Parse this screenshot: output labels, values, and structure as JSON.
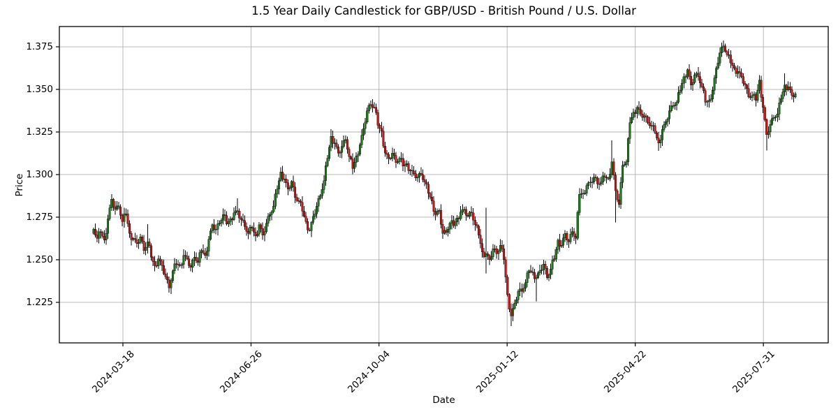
{
  "title": "1.5 Year Daily Candlestick for GBP/USD - British Pound / U.S. Dollar",
  "axes": {
    "xlabel": "Date",
    "ylabel": "Price"
  },
  "chart_data": {
    "type": "candlestick",
    "instrument": "GBP/USD - British Pound / U.S. Dollar",
    "period": "1.5 Year Daily",
    "grid": true,
    "legend": "none",
    "ylim": [
      1.2012,
      1.3869
    ],
    "y_ticks": [
      1.225,
      1.25,
      1.275,
      1.3,
      1.325,
      1.35,
      1.375
    ],
    "x_tick_labels": [
      "2024-03-18",
      "2024-06-26",
      "2024-10-04",
      "2025-01-12",
      "2025-04-22",
      "2025-07-31"
    ],
    "x_tick_day_index": [
      16.3,
      87.5,
      158.6,
      229.8,
      301.0,
      372.2
    ],
    "n_candles": 391,
    "anchor_step_trading_days": 2,
    "min_low": 1.211,
    "max_high": 1.3787,
    "first_close": 1.268,
    "last_close": 1.3475,
    "anchor_closes": [
      1.268,
      1.2625,
      1.266,
      1.2615,
      1.274,
      1.2855,
      1.2795,
      1.281,
      1.2725,
      1.277,
      1.2655,
      1.2625,
      1.2595,
      1.2635,
      1.2555,
      1.2605,
      1.2515,
      1.2465,
      1.2505,
      1.2465,
      1.24,
      1.2335,
      1.2435,
      1.2475,
      1.2465,
      1.2525,
      1.2505,
      1.2455,
      1.2515,
      1.2485,
      1.2555,
      1.2525,
      1.262,
      1.2705,
      1.268,
      1.2715,
      1.2765,
      1.271,
      1.274,
      1.2775,
      1.2785,
      1.2735,
      1.2695,
      1.2655,
      1.2685,
      1.264,
      1.2705,
      1.2645,
      1.2715,
      1.2765,
      1.2815,
      1.2915,
      1.3015,
      1.2975,
      1.2915,
      1.296,
      1.2865,
      1.2845,
      1.2785,
      1.2725,
      1.267,
      1.2755,
      1.2815,
      1.2875,
      1.2965,
      1.3095,
      1.3225,
      1.3185,
      1.3125,
      1.3165,
      1.3205,
      1.3105,
      1.3035,
      1.311,
      1.3175,
      1.327,
      1.3375,
      1.341,
      1.3395,
      1.329,
      1.3255,
      1.3125,
      1.3095,
      1.3125,
      1.307,
      1.3095,
      1.305,
      1.3065,
      1.3025,
      1.3005,
      1.2985,
      1.3,
      1.2955,
      1.289,
      1.2845,
      1.2765,
      1.279,
      1.2655,
      1.266,
      1.2715,
      1.27,
      1.2745,
      1.278,
      1.2795,
      1.2755,
      1.2775,
      1.2705,
      1.2645,
      1.2545,
      1.2535,
      1.25,
      1.2565,
      1.2535,
      1.2585,
      1.25,
      1.2295,
      1.217,
      1.2245,
      1.2315,
      1.2315,
      1.2365,
      1.2435,
      1.2425,
      1.2395,
      1.2435,
      1.2475,
      1.2395,
      1.2445,
      1.2505,
      1.2615,
      1.2585,
      1.2655,
      1.2605,
      1.2665,
      1.2625,
      1.2885,
      1.289,
      1.2935,
      1.2955,
      1.2985,
      1.2945,
      1.2955,
      1.2985,
      1.2975,
      1.3075,
      1.2905,
      1.2825,
      1.3055,
      1.3075,
      1.3305,
      1.3365,
      1.3395,
      1.3355,
      1.3345,
      1.3305,
      1.3285,
      1.3245,
      1.3185,
      1.3265,
      1.331,
      1.3375,
      1.3405,
      1.3425,
      1.3495,
      1.3575,
      1.3615,
      1.3525,
      1.3585,
      1.3575,
      1.3515,
      1.3425,
      1.3435,
      1.3495,
      1.3625,
      1.3715,
      1.3755,
      1.3705,
      1.3655,
      1.3625,
      1.3605,
      1.3575,
      1.3525,
      1.3455,
      1.3465,
      1.3435,
      1.3555,
      1.3395,
      1.3235,
      1.3295,
      1.3335,
      1.3355,
      1.3445,
      1.3525,
      1.3515,
      1.3465,
      1.3475
    ],
    "extremes": {
      "5": {
        "high": 1.2885
      },
      "15": {
        "high": 1.2709
      },
      "21": {
        "low": 1.2307
      },
      "40": {
        "high": 1.286
      },
      "52": {
        "high": 1.3044
      },
      "60": {
        "low": 1.2665
      },
      "66": {
        "high": 1.3266
      },
      "72": {
        "low": 1.3002
      },
      "77": {
        "high": 1.3434
      },
      "78": {
        "high": 1.3425
      },
      "103": {
        "high": 1.2811
      },
      "109": {
        "high": 1.2805,
        "low": 1.242
      },
      "116": {
        "low": 1.211
      },
      "123": {
        "low": 1.2255
      },
      "144": {
        "high": 1.32
      },
      "145": {
        "low": 1.272
      },
      "157": {
        "low": 1.314
      },
      "175": {
        "high": 1.3787
      },
      "185": {
        "high": 1.3585
      },
      "187": {
        "low": 1.3141
      },
      "192": {
        "high": 1.3594
      }
    },
    "colors": {
      "up_body": "#1a7a1a",
      "down_body": "#cc1414",
      "wick": "#000000",
      "grid": "#b0b0b0",
      "spine": "#000000",
      "background": "#ffffff"
    }
  }
}
